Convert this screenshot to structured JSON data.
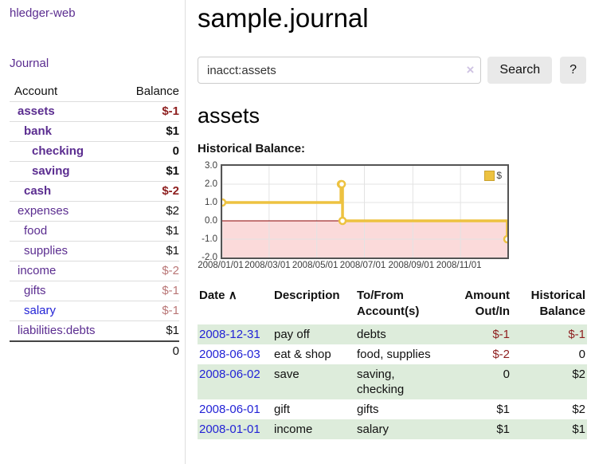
{
  "palette": {
    "purple": "#5b2d90",
    "link_blue": "#2323d6",
    "negative_red": "#8e1f1f",
    "muted_red": "#b97676",
    "row_green": "#ddecdb",
    "chart_yellow": "#edc240",
    "chart_pink": "#fbdada",
    "zero_line_red": "#8b0000",
    "chart_border": "#545454",
    "button_gray": "#e9e9e9"
  },
  "icons": {
    "clear_search": "×",
    "sort_ascending": "∧"
  },
  "sidebar": {
    "app_title": "hledger-web",
    "nav": {
      "journal": "Journal"
    },
    "accounts": {
      "headers": {
        "account": "Account",
        "balance": "Balance"
      },
      "rows": [
        {
          "name": "assets",
          "balance": "$-1"
        },
        {
          "name": "bank",
          "balance": "$1"
        },
        {
          "name": "checking",
          "balance": "0"
        },
        {
          "name": "saving",
          "balance": "$1"
        },
        {
          "name": "cash",
          "balance": "$-2"
        },
        {
          "name": "expenses",
          "balance": "$2"
        },
        {
          "name": "food",
          "balance": "$1"
        },
        {
          "name": "supplies",
          "balance": "$1"
        },
        {
          "name": "income",
          "balance": "$-2"
        },
        {
          "name": "gifts",
          "balance": "$-1"
        },
        {
          "name": "salary",
          "balance": "$-1"
        },
        {
          "name": "liabilities:debts",
          "balance": "$1"
        }
      ],
      "total": "0"
    }
  },
  "main": {
    "title": "sample.journal",
    "search": {
      "value": "inacct:assets",
      "button_label": "Search",
      "help_label": "?"
    },
    "account_heading": "assets",
    "chart_label": "Historical Balance:"
  },
  "chart_data": {
    "type": "line",
    "steps": true,
    "title": "Historical Balance",
    "x_range": [
      "2008-01-01",
      "2008-12-31"
    ],
    "ylim": [
      -2,
      3
    ],
    "series": [
      {
        "name": "$",
        "color": "#edc240",
        "points": [
          {
            "x": "2008-01-01",
            "y": 1
          },
          {
            "x": "2008-06-01",
            "y": 2
          },
          {
            "x": "2008-06-02",
            "y": 2
          },
          {
            "x": "2008-06-03",
            "y": 0
          },
          {
            "x": "2008-12-31",
            "y": -1
          }
        ]
      }
    ],
    "x_ticks": [
      {
        "date": "2008-01-01",
        "label": "2008/01/01"
      },
      {
        "date": "2008-03-01",
        "label": "2008/03/01"
      },
      {
        "date": "2008-05-01",
        "label": "2008/05/01"
      },
      {
        "date": "2008-07-01",
        "label": "2008/07/01"
      },
      {
        "date": "2008-09-01",
        "label": "2008/09/01"
      },
      {
        "date": "2008-11-01",
        "label": "2008/11/01"
      }
    ],
    "y_ticks": [
      {
        "value": 3,
        "label": "3.0"
      },
      {
        "value": 2,
        "label": "2.0"
      },
      {
        "value": 1,
        "label": "1.0"
      },
      {
        "value": 0,
        "label": "0.0"
      },
      {
        "value": -1,
        "label": "-1.0"
      },
      {
        "value": -2,
        "label": "-2.0"
      }
    ],
    "y_grid": [
      2,
      1,
      -1
    ],
    "legend": {
      "position": "top-right",
      "entries": [
        "$"
      ]
    },
    "negative_region_color": "#fbdada",
    "zero_line_color": "#8b0000",
    "grid": true
  },
  "register": {
    "headers": {
      "date": "Date",
      "description": "Description",
      "accounts": "To/From Account(s)",
      "amount": "Amount Out/In",
      "balance": "Historical Balance"
    },
    "rows": [
      {
        "date": "2008-12-31",
        "description": "pay off",
        "accounts": "debts",
        "amount": "$-1",
        "balance": "$-1"
      },
      {
        "date": "2008-06-03",
        "description": "eat & shop",
        "accounts": "food, supplies",
        "amount": "$-2",
        "balance": "0"
      },
      {
        "date": "2008-06-02",
        "description": "save",
        "accounts": "saving, checking",
        "amount": "0",
        "balance": "$2"
      },
      {
        "date": "2008-06-01",
        "description": "gift",
        "accounts": "gifts",
        "amount": "$1",
        "balance": "$2"
      },
      {
        "date": "2008-01-01",
        "description": "income",
        "accounts": "salary",
        "amount": "$1",
        "balance": "$1"
      }
    ]
  }
}
